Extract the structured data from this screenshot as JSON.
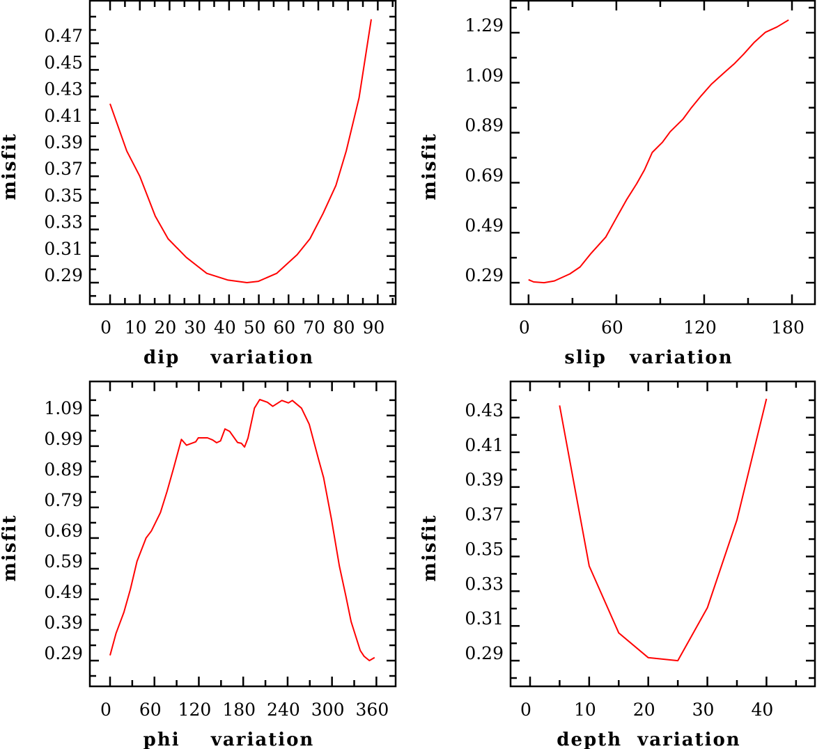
{
  "chart_data": [
    {
      "type": "line",
      "title": "",
      "xlabel": "dip    variation",
      "ylabel": "misfit",
      "xlim": [
        -6.8,
        96
      ],
      "ylim": [
        0.2738,
        0.502
      ],
      "xticks_major": [
        0,
        10,
        20,
        30,
        40,
        50,
        60,
        70,
        80,
        90
      ],
      "xtick_labels": [
        "0",
        "10",
        "20",
        "30",
        "40",
        "50",
        "60",
        "70",
        "80",
        "90"
      ],
      "xticks_minor": [
        5,
        15,
        25,
        35,
        45,
        55,
        65,
        75,
        85,
        95
      ],
      "yticks_major": [
        0.29,
        0.31,
        0.33,
        0.35,
        0.37,
        0.39,
        0.41,
        0.43,
        0.45,
        0.47
      ],
      "ytick_labels": [
        "0.29",
        "0.31",
        "0.33",
        "0.35",
        "0.37",
        "0.39",
        "0.41",
        "0.43",
        "0.45",
        "0.47"
      ],
      "yticks_minor": [
        0.28,
        0.3,
        0.32,
        0.34,
        0.36,
        0.38,
        0.4,
        0.42,
        0.44,
        0.46,
        0.48,
        0.49
      ],
      "grid": false,
      "color": "#ff0000",
      "x": [
        0,
        5.6,
        10,
        15.2,
        19.5,
        25.6,
        32.5,
        39.5,
        46,
        49.9,
        56,
        62.9,
        67.2,
        71.6,
        75.9,
        79.4,
        83.7,
        87.8
      ],
      "y": [
        0.4245,
        0.389,
        0.37,
        0.34,
        0.323,
        0.309,
        0.297,
        0.292,
        0.29,
        0.291,
        0.297,
        0.311,
        0.323,
        0.342,
        0.363,
        0.389,
        0.429,
        0.488
      ]
    },
    {
      "type": "line",
      "title": "",
      "xlabel": "slip   variation",
      "ylabel": "misfit",
      "xlim": [
        -12.3,
        195.7
      ],
      "ylim": [
        0.204,
        1.418
      ],
      "xticks_major": [
        0,
        60,
        120,
        180
      ],
      "xtick_labels": [
        "0",
        "60",
        "120",
        "180"
      ],
      "xticks_minor": [
        30,
        90,
        150
      ],
      "yticks_major": [
        0.29,
        0.49,
        0.69,
        0.89,
        1.09,
        1.29
      ],
      "ytick_labels": [
        "0.29",
        "0.49",
        "0.69",
        "0.89",
        "1.09",
        "1.29"
      ],
      "yticks_minor": [
        0.39,
        0.59,
        0.79,
        0.99,
        1.19,
        1.39
      ],
      "grid": false,
      "color": "#ff0000",
      "x": [
        0,
        3.5,
        10.6,
        17.6,
        28.2,
        35.2,
        42.2,
        52.8,
        59.8,
        66.9,
        73.9,
        79.2,
        84.5,
        91.5,
        96.8,
        105.6,
        110.9,
        117.9,
        124.9,
        133.7,
        140.8,
        146.9,
        154,
        161.9,
        169.8,
        177.7
      ],
      "y": [
        0.302,
        0.293,
        0.29,
        0.297,
        0.325,
        0.353,
        0.404,
        0.473,
        0.547,
        0.621,
        0.686,
        0.741,
        0.811,
        0.852,
        0.894,
        0.945,
        0.987,
        1.037,
        1.084,
        1.13,
        1.167,
        1.204,
        1.25,
        1.292,
        1.313,
        1.341
      ]
    },
    {
      "type": "line",
      "title": "",
      "xlabel": "phi    variation",
      "ylabel": "misfit",
      "xlim": [
        -27.3,
        386
      ],
      "ylim": [
        0.206,
        1.201
      ],
      "xticks_major": [
        0,
        60,
        120,
        180,
        240,
        300,
        360
      ],
      "xtick_labels": [
        "0",
        "60",
        "120",
        "180",
        "240",
        "300",
        "360"
      ],
      "xticks_minor": [
        30,
        90,
        150,
        210,
        270,
        330
      ],
      "yticks_major": [
        0.29,
        0.39,
        0.49,
        0.59,
        0.69,
        0.79,
        0.89,
        0.99,
        1.09
      ],
      "ytick_labels": [
        "0.29",
        "0.39",
        "0.49",
        "0.59",
        "0.69",
        "0.79",
        "0.89",
        "0.99",
        "1.09"
      ],
      "yticks_minor": [
        0.24,
        0.34,
        0.44,
        0.54,
        0.64,
        0.74,
        0.84,
        0.94,
        1.04,
        1.14
      ],
      "grid": false,
      "color": "#ff0000",
      "x": [
        0,
        8.1,
        18.7,
        27.5,
        36.4,
        48.7,
        55.8,
        68.1,
        77,
        85.8,
        96.4,
        103.4,
        115.8,
        119.3,
        131.7,
        138.7,
        144,
        149.3,
        155.3,
        161.7,
        172.3,
        177.6,
        181.8,
        186.4,
        195.2,
        202.3,
        212.8,
        219.9,
        232.3,
        241.1,
        246.4,
        258.7,
        269.3,
        281.7,
        288.7,
        299.3,
        309.9,
        318.7,
        325.8,
        338.2,
        343.4,
        350.5,
        357.6
      ],
      "y": [
        0.307,
        0.379,
        0.448,
        0.523,
        0.614,
        0.69,
        0.713,
        0.773,
        0.842,
        0.917,
        1.012,
        0.993,
        1.004,
        1.017,
        1.017,
        1.01,
        1.001,
        1.007,
        1.046,
        1.038,
        1.002,
        0.999,
        0.987,
        1.016,
        1.114,
        1.142,
        1.133,
        1.12,
        1.139,
        1.131,
        1.139,
        1.114,
        1.061,
        0.948,
        0.887,
        0.751,
        0.599,
        0.501,
        0.417,
        0.323,
        0.304,
        0.29,
        0.3
      ]
    },
    {
      "type": "line",
      "title": "",
      "xlabel": "depth  variation",
      "ylabel": "misfit",
      "xlim": [
        -3.3,
        48.2
      ],
      "ylim": [
        0.2752,
        0.4508
      ],
      "xticks_major": [
        0,
        10,
        20,
        30,
        40
      ],
      "xtick_labels": [
        "0",
        "10",
        "20",
        "30",
        "40"
      ],
      "xticks_minor": [
        5,
        15,
        25,
        35,
        45
      ],
      "yticks_major": [
        0.29,
        0.31,
        0.33,
        0.35,
        0.37,
        0.39,
        0.41,
        0.43
      ],
      "ytick_labels": [
        "0.29",
        "0.31",
        "0.33",
        "0.35",
        "0.37",
        "0.39",
        "0.41",
        "0.43"
      ],
      "yticks_minor": [
        0.28,
        0.3,
        0.32,
        0.34,
        0.36,
        0.38,
        0.4,
        0.42,
        0.44
      ],
      "grid": false,
      "color": "#ff0000",
      "x": [
        5,
        10,
        15,
        20,
        25,
        30,
        35,
        40
      ],
      "y": [
        0.437,
        0.3445,
        0.306,
        0.2917,
        0.29,
        0.3205,
        0.371,
        0.4408
      ]
    }
  ]
}
